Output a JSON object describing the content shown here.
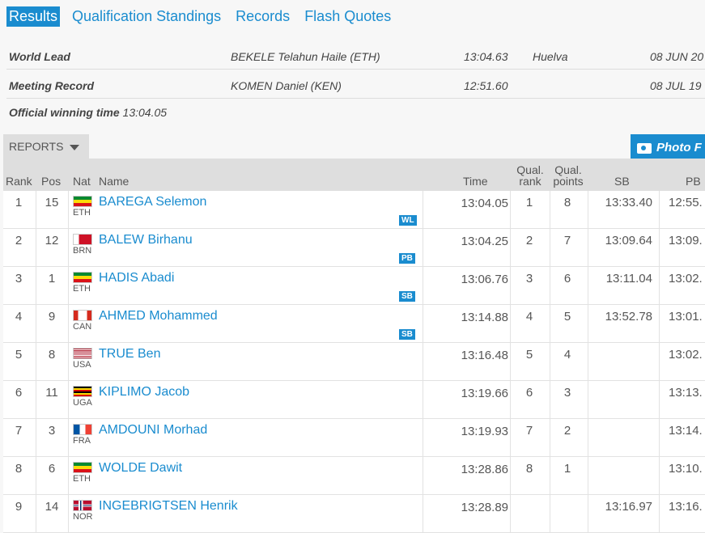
{
  "tabs": [
    "Results",
    "Qualification Standings",
    "Records",
    "Flash Quotes"
  ],
  "records": [
    {
      "label": "World Lead",
      "athlete": "BEKELE Telahun Haile (ETH)",
      "mark": "13:04.63",
      "venue": "Huelva",
      "date": "08 JUN 20"
    },
    {
      "label": "Meeting Record",
      "athlete": "KOMEN Daniel (KEN)",
      "mark": "12:51.60",
      "venue": "",
      "date": "08 JUL 19"
    }
  ],
  "official_winning": {
    "label": "Official winning time",
    "value": "13:04.05"
  },
  "reports_label": "REPORTS",
  "photo_label": "Photo F",
  "headers": {
    "rank": "Rank",
    "pos": "Pos",
    "nat": "Nat",
    "name": "Name",
    "time": "Time",
    "qual_rank": "Qual. rank",
    "qual_points": "Qual. points",
    "sb": "SB",
    "pb": "PB"
  },
  "rows": [
    {
      "rank": "1",
      "pos": "15",
      "nat": "ETH",
      "name": "BAREGA Selemon",
      "badge": "WL",
      "time": "13:04.05",
      "qual_rank": "1",
      "qual_points": "8",
      "sb": "13:33.40",
      "pb": "12:55."
    },
    {
      "rank": "2",
      "pos": "12",
      "nat": "BRN",
      "name": "BALEW Birhanu",
      "badge": "PB",
      "time": "13:04.25",
      "qual_rank": "2",
      "qual_points": "7",
      "sb": "13:09.64",
      "pb": "13:09."
    },
    {
      "rank": "3",
      "pos": "1",
      "nat": "ETH",
      "name": "HADIS Abadi",
      "badge": "SB",
      "time": "13:06.76",
      "qual_rank": "3",
      "qual_points": "6",
      "sb": "13:11.04",
      "pb": "13:02."
    },
    {
      "rank": "4",
      "pos": "9",
      "nat": "CAN",
      "name": "AHMED Mohammed",
      "badge": "SB",
      "time": "13:14.88",
      "qual_rank": "4",
      "qual_points": "5",
      "sb": "13:52.78",
      "pb": "13:01."
    },
    {
      "rank": "5",
      "pos": "8",
      "nat": "USA",
      "name": "TRUE Ben",
      "badge": "",
      "time": "13:16.48",
      "qual_rank": "5",
      "qual_points": "4",
      "sb": "",
      "pb": "13:02."
    },
    {
      "rank": "6",
      "pos": "11",
      "nat": "UGA",
      "name": "KIPLIMO Jacob",
      "badge": "",
      "time": "13:19.66",
      "qual_rank": "6",
      "qual_points": "3",
      "sb": "",
      "pb": "13:13."
    },
    {
      "rank": "7",
      "pos": "3",
      "nat": "FRA",
      "name": "AMDOUNI Morhad",
      "badge": "",
      "time": "13:19.93",
      "qual_rank": "7",
      "qual_points": "2",
      "sb": "",
      "pb": "13:14."
    },
    {
      "rank": "8",
      "pos": "6",
      "nat": "ETH",
      "name": "WOLDE Dawit",
      "badge": "",
      "time": "13:28.86",
      "qual_rank": "8",
      "qual_points": "1",
      "sb": "",
      "pb": "13:10."
    },
    {
      "rank": "9",
      "pos": "14",
      "nat": "NOR",
      "name": "INGEBRIGTSEN Henrik",
      "badge": "",
      "time": "13:28.89",
      "qual_rank": "",
      "qual_points": "",
      "sb": "13:16.97",
      "pb": "13:16."
    }
  ],
  "colors": {
    "accent": "#1a8ccf"
  }
}
